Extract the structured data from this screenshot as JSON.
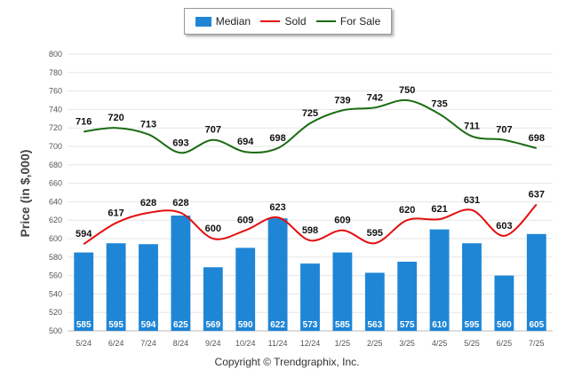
{
  "legend": {
    "median_label": "Median",
    "sold_label": "Sold",
    "forsale_label": "For Sale"
  },
  "copyright": "Copyright © Trendgraphix, Inc.",
  "colors": {
    "median": "#1f86d6",
    "sold": "#e30e0e",
    "forsale": "#1a6b12",
    "grid": "#e6e6e6"
  },
  "chart_data": {
    "type": "bar",
    "categories": [
      "5/24",
      "6/24",
      "7/24",
      "8/24",
      "9/24",
      "10/24",
      "11/24",
      "12/24",
      "1/25",
      "2/25",
      "3/25",
      "4/25",
      "5/25",
      "6/25",
      "7/25"
    ],
    "ylabel": "Price (in $,000)",
    "ylim": [
      500,
      800
    ],
    "yticks": [
      500,
      520,
      540,
      560,
      580,
      600,
      620,
      640,
      660,
      680,
      700,
      720,
      740,
      760,
      780,
      800
    ],
    "grid": true,
    "legend_position": "top-center",
    "series": [
      {
        "name": "Median",
        "type": "bar",
        "values": [
          585,
          595,
          594,
          625,
          569,
          590,
          622,
          573,
          585,
          563,
          575,
          610,
          595,
          560,
          605
        ]
      },
      {
        "name": "Sold",
        "type": "line",
        "values": [
          594,
          617,
          628,
          628,
          600,
          609,
          623,
          598,
          609,
          595,
          620,
          621,
          631,
          603,
          637
        ]
      },
      {
        "name": "For Sale",
        "type": "line",
        "values": [
          716,
          720,
          713,
          693,
          707,
          694,
          698,
          725,
          739,
          742,
          750,
          735,
          711,
          707,
          698
        ]
      }
    ]
  }
}
